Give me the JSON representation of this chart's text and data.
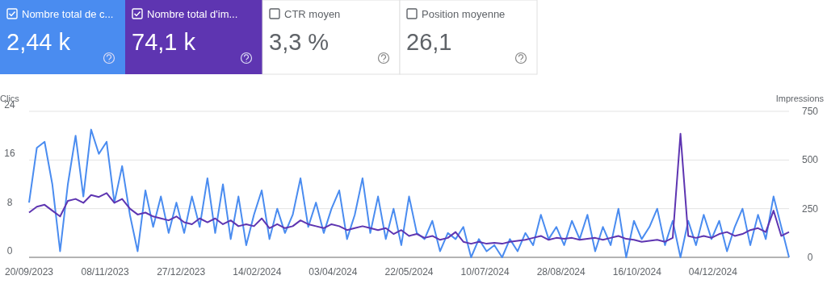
{
  "chart_data": {
    "type": "line",
    "ylabel": "Clics",
    "y2label": "Impressions",
    "annotations": [
      "Nombre total de c...",
      "2,44 k",
      "Nombre total d'im...",
      "74,1 k",
      "CTR moyen",
      "3,3 %",
      "Position moyenne",
      "26,1"
    ],
    "x": [
      "2023-09-20",
      "2023-09-25",
      "2023-09-30",
      "2023-10-05",
      "2023-10-10",
      "2023-10-15",
      "2023-10-20",
      "2023-10-25",
      "2023-10-30",
      "2023-11-04",
      "2023-11-09",
      "2023-11-14",
      "2023-11-19",
      "2023-11-24",
      "2023-11-29",
      "2023-12-04",
      "2023-12-09",
      "2023-12-14",
      "2023-12-19",
      "2023-12-24",
      "2023-12-29",
      "2024-01-03",
      "2024-01-08",
      "2024-01-13",
      "2024-01-18",
      "2024-01-23",
      "2024-01-28",
      "2024-02-02",
      "2024-02-07",
      "2024-02-12",
      "2024-02-17",
      "2024-02-22",
      "2024-02-27",
      "2024-03-03",
      "2024-03-08",
      "2024-03-13",
      "2024-03-18",
      "2024-03-23",
      "2024-03-28",
      "2024-04-02",
      "2024-04-07",
      "2024-04-12",
      "2024-04-17",
      "2024-04-22",
      "2024-04-27",
      "2024-05-02",
      "2024-05-07",
      "2024-05-12",
      "2024-05-17",
      "2024-05-22",
      "2024-05-27",
      "2024-06-01",
      "2024-06-06",
      "2024-06-11",
      "2024-06-16",
      "2024-06-21",
      "2024-06-26",
      "2024-07-01",
      "2024-07-06",
      "2024-07-11",
      "2024-07-16",
      "2024-07-21",
      "2024-07-26",
      "2024-07-31",
      "2024-08-05",
      "2024-08-10",
      "2024-08-15",
      "2024-08-20",
      "2024-08-25",
      "2024-08-30",
      "2024-09-04",
      "2024-09-09",
      "2024-09-14",
      "2024-09-19",
      "2024-09-24",
      "2024-09-29",
      "2024-10-04",
      "2024-10-09",
      "2024-10-14",
      "2024-10-19",
      "2024-10-24",
      "2024-10-29",
      "2024-11-03",
      "2024-11-08",
      "2024-11-13",
      "2024-11-18",
      "2024-11-23",
      "2024-11-28",
      "2024-12-03",
      "2024-12-08",
      "2024-12-13",
      "2024-12-18",
      "2024-12-23",
      "2024-12-28",
      "2025-01-02",
      "2025-01-07",
      "2025-01-12",
      "2025-01-17",
      "2025-01-22"
    ],
    "series": [
      {
        "color": "#4a8cf0",
        "values": [
          9,
          18,
          19,
          12,
          1,
          12,
          20,
          10,
          21,
          17,
          19,
          9,
          15,
          7,
          1,
          11,
          5,
          10,
          4,
          9,
          4,
          10,
          5,
          13,
          4,
          12,
          3,
          10,
          2,
          7,
          11,
          3,
          8,
          4,
          7,
          13,
          5,
          9,
          4,
          8,
          11,
          3,
          7,
          13,
          4,
          10,
          3,
          8,
          2,
          10,
          4,
          3,
          6,
          1,
          4,
          3,
          5,
          0,
          3,
          1,
          2,
          0,
          3,
          1,
          4,
          2,
          7,
          3,
          5,
          2,
          6,
          3,
          7,
          1,
          5,
          2,
          8,
          0,
          6,
          3,
          5,
          8,
          2,
          6,
          0,
          6,
          2,
          7,
          3,
          6,
          1,
          5,
          8,
          2,
          7,
          3,
          10,
          5,
          0
        ]
      },
      {
        "color": "#5e35b1",
        "axis": "y2",
        "values": [
          230,
          260,
          270,
          240,
          210,
          290,
          300,
          280,
          320,
          310,
          330,
          280,
          300,
          250,
          220,
          230,
          210,
          200,
          190,
          210,
          180,
          170,
          200,
          180,
          200,
          170,
          190,
          160,
          170,
          160,
          200,
          150,
          170,
          150,
          160,
          190,
          170,
          160,
          150,
          170,
          160,
          140,
          150,
          160,
          150,
          140,
          150,
          120,
          140,
          110,
          120,
          100,
          110,
          90,
          100,
          130,
          80,
          70,
          80,
          70,
          75,
          70,
          80,
          85,
          90,
          100,
          110,
          90,
          100,
          95,
          100,
          90,
          95,
          100,
          90,
          100,
          110,
          95,
          90,
          80,
          85,
          90,
          80,
          100,
          635,
          110,
          100,
          110,
          100,
          120,
          130,
          110,
          120,
          140,
          150,
          130,
          240,
          110,
          130
        ]
      }
    ],
    "xlim": [
      "2023-09-20",
      "2025-01-22"
    ],
    "xticks": [
      {
        "value": "2023-09-20",
        "label": "20/09/2023"
      },
      {
        "value": "2023-11-08",
        "label": "08/11/2023"
      },
      {
        "value": "2023-12-27",
        "label": "27/12/2023"
      },
      {
        "value": "2024-02-14",
        "label": "14/02/2024"
      },
      {
        "value": "2024-04-03",
        "label": "03/04/2024"
      },
      {
        "value": "2024-05-22",
        "label": "22/05/2024"
      },
      {
        "value": "2024-07-10",
        "label": "10/07/2024"
      },
      {
        "value": "2024-08-28",
        "label": "28/08/2024"
      },
      {
        "value": "2024-10-16",
        "label": "16/10/2024"
      },
      {
        "value": "2024-12-04",
        "label": "04/12/2024"
      }
    ],
    "ylim": [
      0,
      24
    ],
    "yticks": [
      0,
      8,
      16,
      24
    ],
    "y2lim": [
      0,
      750
    ],
    "y2ticks": [
      0,
      250,
      500,
      750
    ],
    "grid": "y"
  }
}
